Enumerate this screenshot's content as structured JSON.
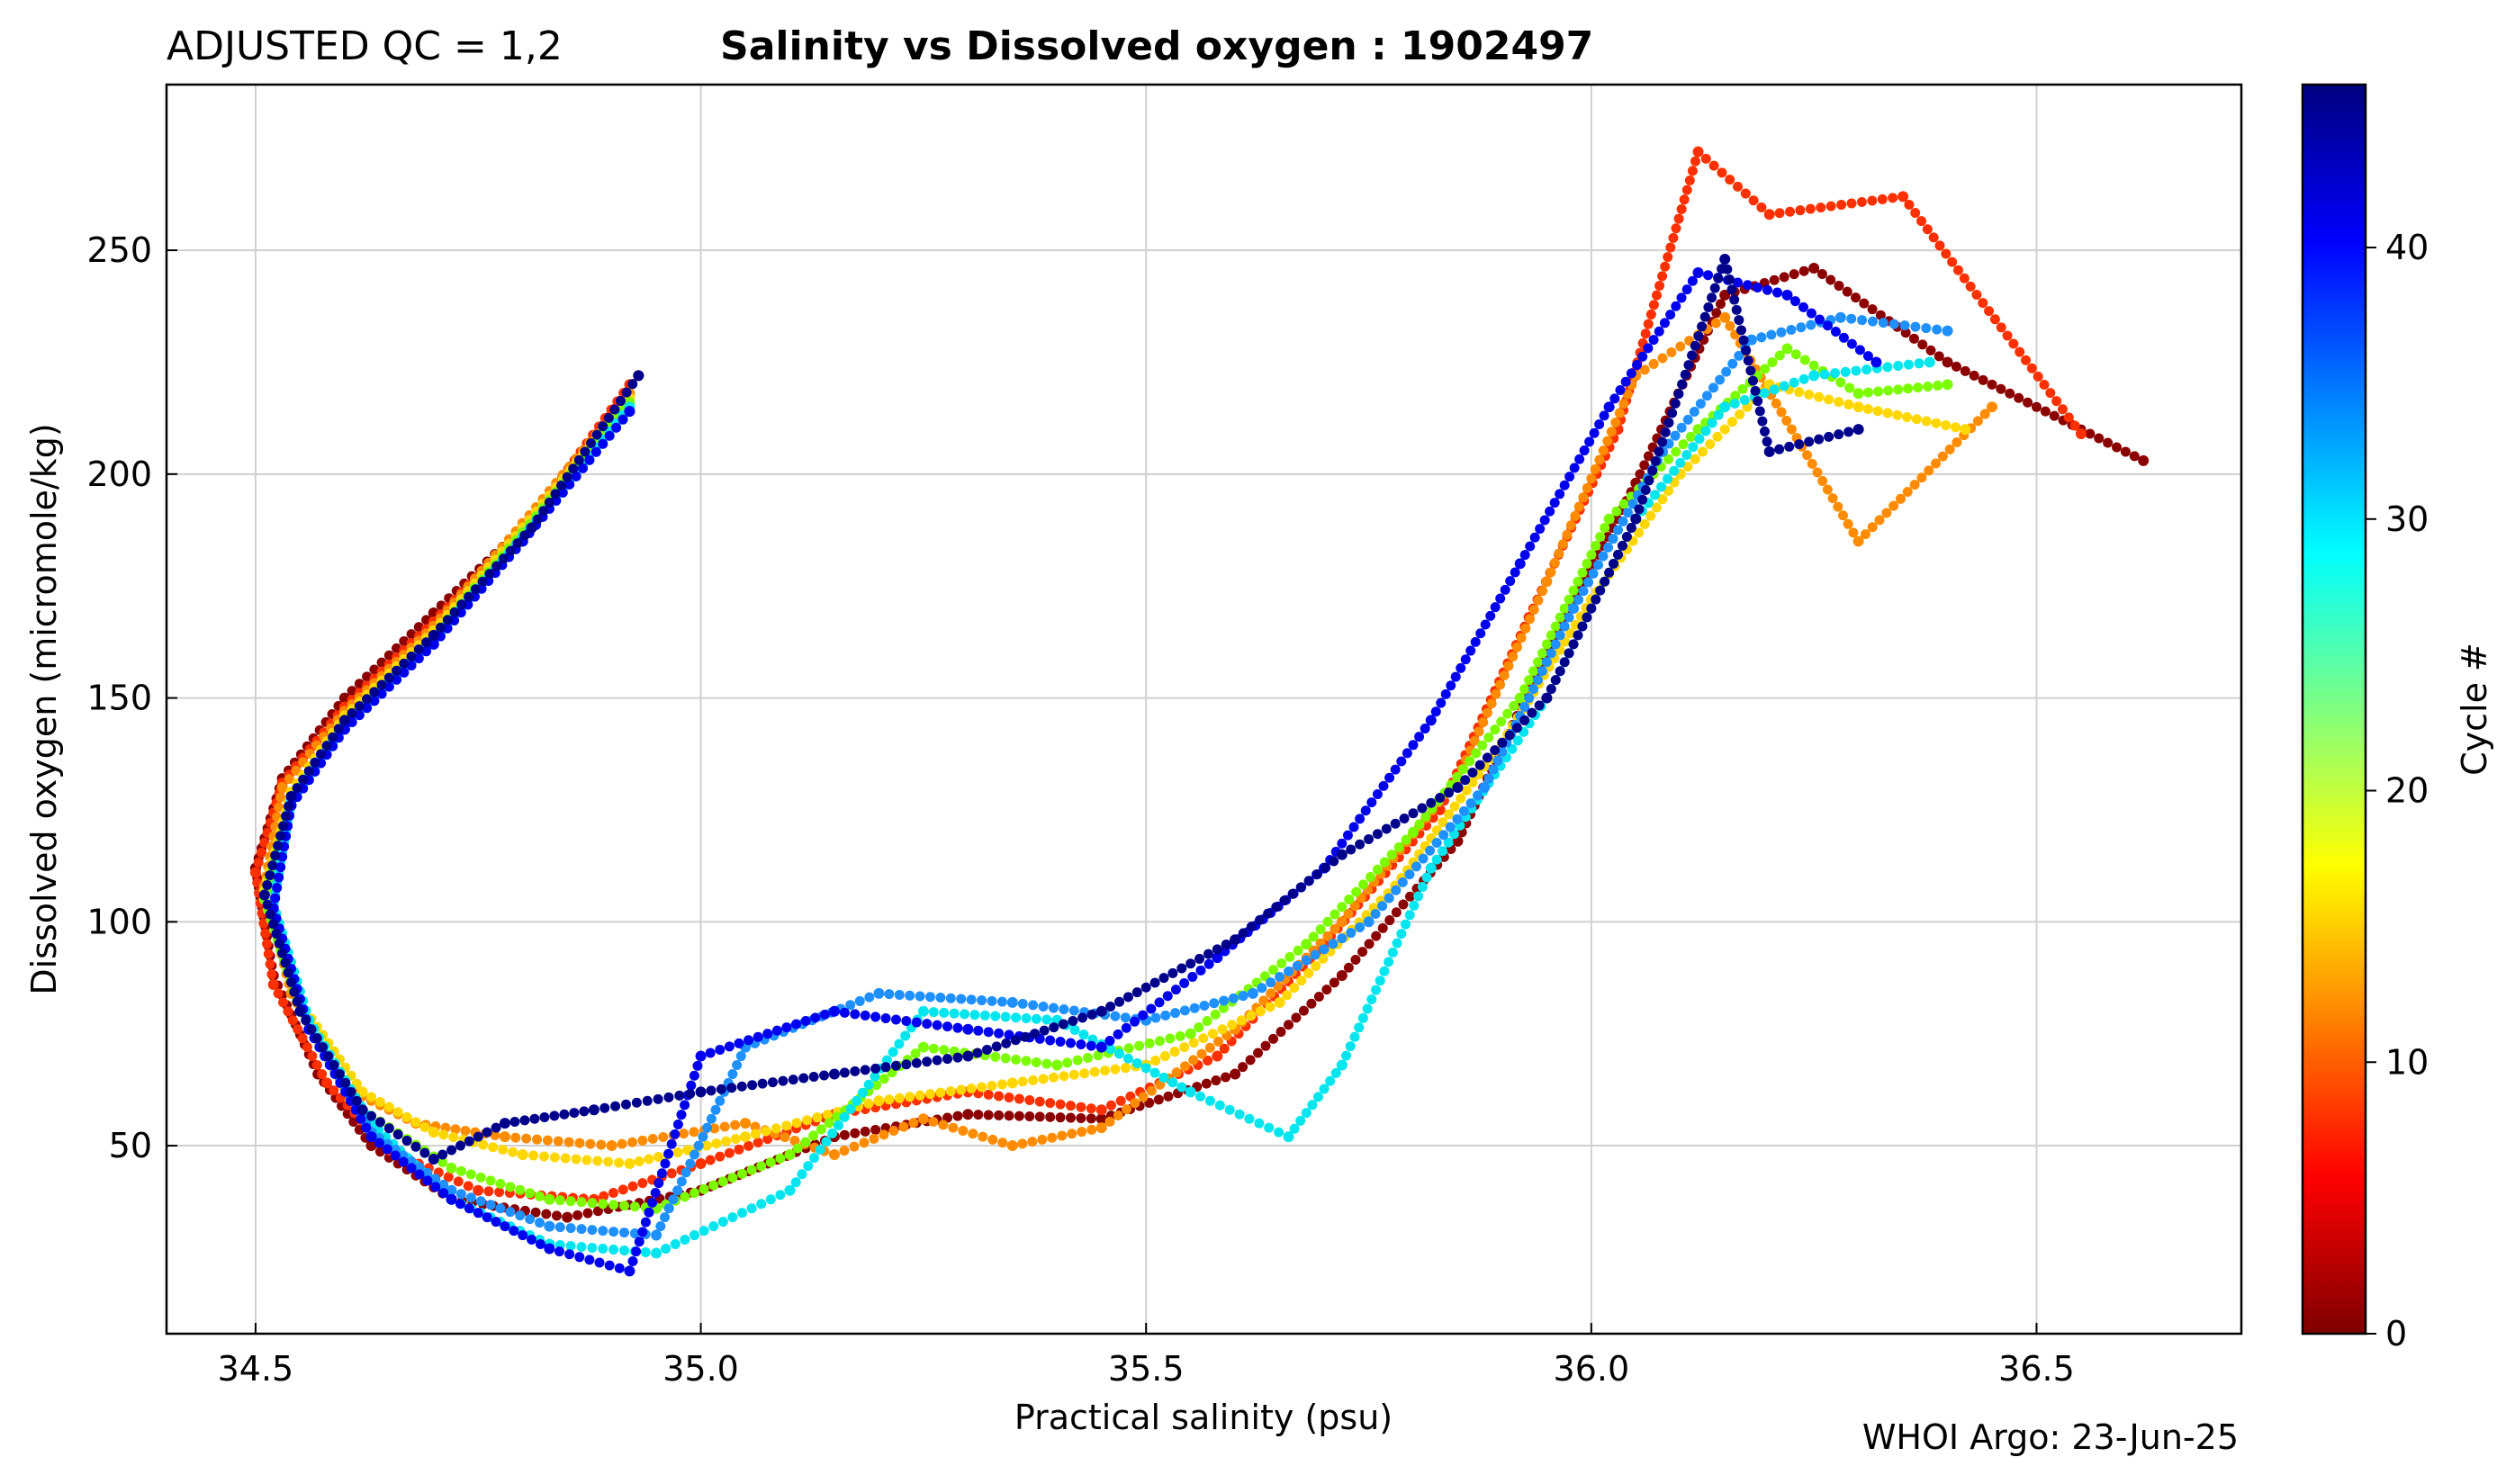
{
  "header": {
    "qc_label": "ADJUSTED QC = 1,2",
    "title": "Salinity vs Dissolved oxygen : 1902497"
  },
  "footer": {
    "credit": "WHOI Argo: 23-Jun-25"
  },
  "chart_data": {
    "type": "scatter",
    "title": "Salinity vs Dissolved oxygen : 1902497",
    "xlabel": "Practical salinity  (psu)",
    "ylabel": "Dissolved oxygen  (micromole/kg)",
    "xlim": [
      34.4,
      36.73
    ],
    "ylim": [
      8,
      287
    ],
    "xticks": [
      34.5,
      35.0,
      35.5,
      36.0,
      36.5
    ],
    "xtick_labels": [
      "34.5",
      "35.0",
      "35.5",
      "36.0",
      "36.5"
    ],
    "yticks": [
      50,
      100,
      150,
      200,
      250
    ],
    "ytick_labels": [
      "50",
      "100",
      "150",
      "200",
      "250"
    ],
    "grid": true,
    "colorbar": {
      "label": "Cycle #",
      "colormap": "jet",
      "range": [
        0,
        46
      ],
      "ticks": [
        0,
        10,
        20,
        30,
        40
      ],
      "tick_labels": [
        "0",
        "10",
        "20",
        "30",
        "40"
      ]
    },
    "series": [
      {
        "cycle": 1,
        "color": "#8b0000",
        "x": [
          34.93,
          34.82,
          34.7,
          34.6,
          34.53,
          34.5,
          34.52,
          34.57,
          34.63,
          34.72,
          34.85,
          35.0,
          35.15,
          35.3,
          35.45,
          35.6,
          35.72,
          35.85,
          35.95,
          36.05,
          36.15,
          36.25,
          36.4,
          36.62
        ],
        "y": [
          222,
          192,
          169,
          150,
          132,
          112,
          88,
          66,
          50,
          38,
          34,
          40,
          52,
          57,
          56,
          66,
          88,
          118,
          160,
          198,
          240,
          246,
          225,
          203
        ]
      },
      {
        "cycle": 5,
        "color": "#ff3000",
        "x": [
          34.92,
          34.81,
          34.7,
          34.6,
          34.53,
          34.5,
          34.52,
          34.58,
          34.65,
          34.75,
          34.88,
          35.0,
          35.15,
          35.3,
          35.45,
          35.58,
          35.7,
          35.83,
          35.93,
          36.03,
          36.12,
          36.2,
          36.35,
          36.55
        ],
        "y": [
          220,
          190,
          167,
          148,
          131,
          111,
          86,
          64,
          49,
          40,
          38,
          46,
          57,
          62,
          58,
          70,
          95,
          125,
          168,
          210,
          272,
          258,
          262,
          209
        ]
      },
      {
        "cycle": 11,
        "color": "#ff8c00",
        "x": [
          34.92,
          34.8,
          34.7,
          34.6,
          34.53,
          34.51,
          34.54,
          34.6,
          34.68,
          34.78,
          34.9,
          35.05,
          35.15,
          35.25,
          35.35,
          35.45,
          35.6,
          35.72,
          35.85,
          35.95,
          36.05,
          36.15,
          36.3,
          36.45
        ],
        "y": [
          218,
          189,
          166,
          147,
          130,
          108,
          84,
          63,
          55,
          52,
          50,
          55,
          48,
          56,
          50,
          54,
          76,
          100,
          132,
          176,
          222,
          235,
          185,
          215
        ]
      },
      {
        "cycle": 17,
        "color": "#ffd700",
        "x": [
          34.92,
          34.8,
          34.7,
          34.6,
          34.54,
          34.51,
          34.55,
          34.62,
          34.7,
          34.8,
          34.92,
          35.05,
          35.2,
          35.35,
          35.5,
          35.65,
          35.78,
          35.9,
          36.0,
          36.1,
          36.2,
          36.3,
          36.42
        ],
        "y": [
          217,
          188,
          165,
          146,
          129,
          107,
          82,
          62,
          53,
          48,
          46,
          52,
          60,
          64,
          68,
          82,
          108,
          140,
          172,
          200,
          220,
          215,
          210
        ]
      },
      {
        "cycle": 22,
        "color": "#7cfc00",
        "x": [
          34.92,
          34.8,
          34.7,
          34.6,
          34.54,
          34.51,
          34.55,
          34.62,
          34.72,
          34.83,
          34.95,
          35.1,
          35.25,
          35.4,
          35.55,
          35.68,
          35.8,
          35.92,
          36.02,
          36.12,
          36.22,
          36.3,
          36.4
        ],
        "y": [
          216,
          187,
          164,
          145,
          128,
          105,
          80,
          58,
          45,
          38,
          36,
          48,
          72,
          68,
          75,
          95,
          120,
          150,
          190,
          210,
          228,
          218,
          220
        ]
      },
      {
        "cycle": 28,
        "color": "#00e5ee",
        "x": [
          34.92,
          34.8,
          34.7,
          34.6,
          34.54,
          34.52,
          34.56,
          34.63,
          34.72,
          34.83,
          34.95,
          35.1,
          35.25,
          35.4,
          35.55,
          35.66,
          35.72,
          35.82,
          35.95,
          36.05,
          36.15,
          36.25,
          36.38
        ],
        "y": [
          215,
          186,
          163,
          144,
          127,
          104,
          78,
          55,
          38,
          28,
          26,
          40,
          80,
          78,
          62,
          52,
          68,
          112,
          150,
          190,
          215,
          222,
          225
        ]
      },
      {
        "cycle": 34,
        "color": "#1e90ff",
        "x": [
          34.92,
          34.8,
          34.7,
          34.6,
          34.54,
          34.52,
          34.56,
          34.63,
          34.72,
          34.83,
          34.95,
          35.05,
          35.2,
          35.35,
          35.5,
          35.62,
          35.75,
          35.88,
          35.98,
          36.08,
          36.18,
          36.28,
          36.4
        ],
        "y": [
          214,
          185,
          162,
          143,
          126,
          103,
          76,
          53,
          40,
          32,
          30,
          72,
          84,
          82,
          78,
          84,
          100,
          130,
          170,
          205,
          230,
          235,
          232
        ]
      },
      {
        "cycle": 40,
        "color": "#0000ee",
        "x": [
          34.92,
          34.8,
          34.7,
          34.6,
          34.54,
          34.52,
          34.56,
          34.63,
          34.72,
          34.83,
          34.92,
          35.0,
          35.15,
          35.3,
          35.45,
          35.58,
          35.7,
          35.82,
          35.92,
          36.02,
          36.12,
          36.22,
          36.32
        ],
        "y": [
          214,
          185,
          162,
          143,
          126,
          103,
          76,
          52,
          38,
          27,
          22,
          70,
          80,
          76,
          72,
          92,
          112,
          145,
          180,
          215,
          245,
          240,
          225
        ]
      },
      {
        "cycle": 45,
        "color": "#00008b",
        "x": [
          34.93,
          34.81,
          34.7,
          34.6,
          34.54,
          34.51,
          34.55,
          34.62,
          34.7,
          34.78,
          34.88,
          35.0,
          35.15,
          35.3,
          35.45,
          35.6,
          35.72,
          35.85,
          35.95,
          36.05,
          36.15,
          36.2,
          36.3
        ],
        "y": [
          222,
          188,
          164,
          145,
          128,
          106,
          80,
          58,
          47,
          55,
          58,
          62,
          66,
          70,
          80,
          96,
          115,
          130,
          150,
          190,
          248,
          205,
          210
        ]
      }
    ]
  }
}
